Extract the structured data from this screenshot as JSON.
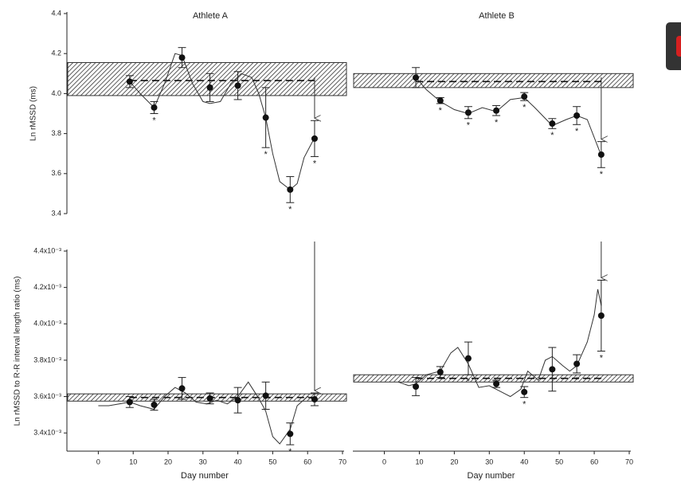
{
  "chart_data": [
    {
      "type": "line",
      "title": "Athlete A",
      "ylabel": "Ln rMSSD (ms)",
      "xlim": [
        -9,
        70
      ],
      "ylim": [
        3.4,
        4.4
      ],
      "yticks": [
        3.4,
        3.6,
        3.8,
        {
          "value": 4,
          "label": "4.0"
        },
        4.2,
        4.4
      ],
      "x": [
        9,
        16,
        24,
        32,
        40,
        48,
        55,
        62
      ],
      "series": [
        {
          "color": "#111111",
          "values": [
            4.06,
            3.93,
            4.18,
            4.03,
            4.04,
            3.88,
            3.52,
            3.775
          ],
          "errors": [
            0.03,
            0.03,
            0.05,
            0.07,
            0.07,
            0.15,
            0.065,
            0.09
          ]
        }
      ],
      "starred": [
        false,
        true,
        false,
        false,
        false,
        true,
        true,
        true
      ],
      "star": "*",
      "band": [
        3.99,
        4.155
      ],
      "baseline": 4.065,
      "trace": {
        "x": [
          9,
          12,
          16,
          19,
          22,
          24,
          27,
          30,
          32,
          35,
          38,
          41,
          44,
          46,
          48,
          50,
          52,
          55,
          57,
          59,
          62
        ],
        "values": [
          4.06,
          4.0,
          3.93,
          4.05,
          4.2,
          4.19,
          4.05,
          3.96,
          3.95,
          3.96,
          4.05,
          4.1,
          4.08,
          4.0,
          3.88,
          3.7,
          3.56,
          3.52,
          3.55,
          3.68,
          3.78
        ]
      }
    },
    {
      "type": "line",
      "title": "Athlete B",
      "xlim": [
        -9,
        70
      ],
      "ylim": [
        3.4,
        4.4
      ],
      "x": [
        9,
        16,
        24,
        32,
        40,
        48,
        55,
        62
      ],
      "series": [
        {
          "color": "#111111",
          "values": [
            4.08,
            3.965,
            3.905,
            3.915,
            3.985,
            3.85,
            3.89,
            3.695
          ],
          "errors": [
            0.05,
            0.015,
            0.03,
            0.025,
            0.02,
            0.025,
            0.045,
            0.065
          ]
        }
      ],
      "starred": [
        false,
        true,
        true,
        true,
        true,
        true,
        true,
        true
      ],
      "star": "*",
      "band": [
        4.03,
        4.1
      ],
      "baseline": 4.06,
      "trace": {
        "x": [
          9,
          12,
          16,
          20,
          24,
          28,
          32,
          36,
          40,
          43,
          48,
          52,
          55,
          58,
          62
        ],
        "values": [
          4.08,
          4.02,
          3.96,
          3.92,
          3.9,
          3.93,
          3.91,
          3.97,
          3.98,
          3.93,
          3.84,
          3.87,
          3.89,
          3.87,
          3.69
        ]
      }
    },
    {
      "type": "line",
      "ylabel": "Ln rMSSD to R-R interval length ratio (ms)",
      "xlabel": "Day number",
      "xlim": [
        -9,
        70
      ],
      "ylim": [
        0.0033,
        0.0044
      ],
      "xticks": [
        0,
        10,
        20,
        30,
        40,
        50,
        60,
        70
      ],
      "yticks": [
        {
          "value": 0.0034,
          "label": "3.4x10⁻³"
        },
        {
          "value": 0.0036,
          "label": "3.6x10⁻³"
        },
        {
          "value": 0.0038,
          "label": "3.8x10⁻³"
        },
        {
          "value": 0.004,
          "label": "4.0x10⁻³"
        },
        {
          "value": 0.0042,
          "label": "4.2x10⁻³"
        },
        {
          "value": 0.0044,
          "label": "4.4x10⁻³"
        }
      ],
      "x": [
        9,
        16,
        24,
        32,
        40,
        48,
        55,
        62
      ],
      "series": [
        {
          "color": "#111111",
          "values": [
            0.00357,
            0.003555,
            0.003645,
            0.00359,
            0.00358,
            0.003605,
            0.003395,
            0.003585
          ],
          "errors": [
            3e-05,
            3e-05,
            6e-05,
            3e-05,
            7e-05,
            7.5e-05,
            6e-05,
            3.5e-05
          ]
        }
      ],
      "starred": [
        false,
        false,
        false,
        false,
        false,
        false,
        true,
        false
      ],
      "star": "*",
      "band": [
        0.003575,
        0.003615
      ],
      "baseline": 0.003595,
      "trace": {
        "x": [
          0,
          3,
          6,
          9,
          12,
          16,
          19,
          22,
          25,
          28,
          31,
          34,
          37,
          40,
          43,
          46,
          48,
          50,
          52,
          55,
          57,
          60,
          62
        ],
        "values": [
          0.00355,
          0.00355,
          0.00356,
          0.00357,
          0.00355,
          0.00353,
          0.0036,
          0.00365,
          0.00362,
          0.00357,
          0.00356,
          0.00358,
          0.00356,
          0.0036,
          0.00368,
          0.00359,
          0.00352,
          0.00338,
          0.00334,
          0.00342,
          0.00355,
          0.0036,
          0.00358
        ]
      }
    },
    {
      "type": "line",
      "xlabel": "Day number",
      "xlim": [
        -9,
        70
      ],
      "ylim": [
        0.0033,
        0.0044
      ],
      "xticks": [
        0,
        10,
        20,
        30,
        40,
        50,
        60,
        70
      ],
      "x": [
        9,
        16,
        24,
        32,
        40,
        48,
        55,
        62
      ],
      "series": [
        {
          "color": "#111111",
          "values": [
            0.003655,
            0.003735,
            0.00381,
            0.00367,
            0.003625,
            0.00375,
            0.00378,
            0.004045
          ],
          "errors": [
            5e-05,
            3e-05,
            9e-05,
            2e-05,
            3e-05,
            0.00012,
            5e-05,
            0.000195
          ]
        }
      ],
      "starred": [
        false,
        false,
        true,
        false,
        true,
        false,
        true,
        true
      ],
      "star": "*",
      "band": [
        0.00368,
        0.00372
      ],
      "baseline": 0.0037,
      "trace": {
        "x": [
          4,
          7,
          9,
          12,
          16,
          19,
          21,
          24,
          27,
          30,
          33,
          36,
          39,
          41,
          44,
          46,
          48,
          51,
          53,
          55,
          58,
          60,
          61,
          62
        ],
        "values": [
          0.00368,
          0.00366,
          0.00367,
          0.00372,
          0.00374,
          0.00384,
          0.00387,
          0.00378,
          0.00365,
          0.00366,
          0.00363,
          0.0036,
          0.00364,
          0.00374,
          0.00369,
          0.0038,
          0.00382,
          0.00377,
          0.00374,
          0.00377,
          0.0039,
          0.00405,
          0.00419,
          0.0041
        ]
      }
    }
  ]
}
